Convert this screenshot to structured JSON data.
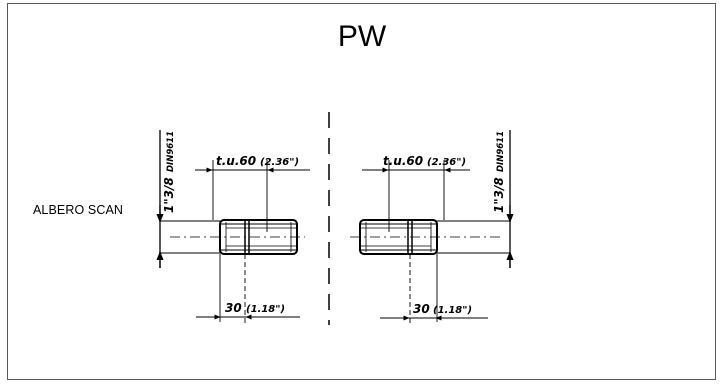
{
  "title": "PW",
  "side_label": "ALBERO SCAN",
  "drawing": {
    "left": {
      "top_dimension": "t.u.60",
      "top_dimension_in": "(2.36\")",
      "bottom_dimension": "30",
      "bottom_dimension_in": "(1.18\")",
      "shaft_size": "1\"3/8",
      "shaft_standard": "DIN9611"
    },
    "right": {
      "top_dimension": "t.u.60",
      "top_dimension_in": "(2.36\")",
      "bottom_dimension": "30",
      "bottom_dimension_in": "(1.18\")",
      "shaft_size": "1\"3/8",
      "shaft_standard": "DIN9611"
    }
  }
}
